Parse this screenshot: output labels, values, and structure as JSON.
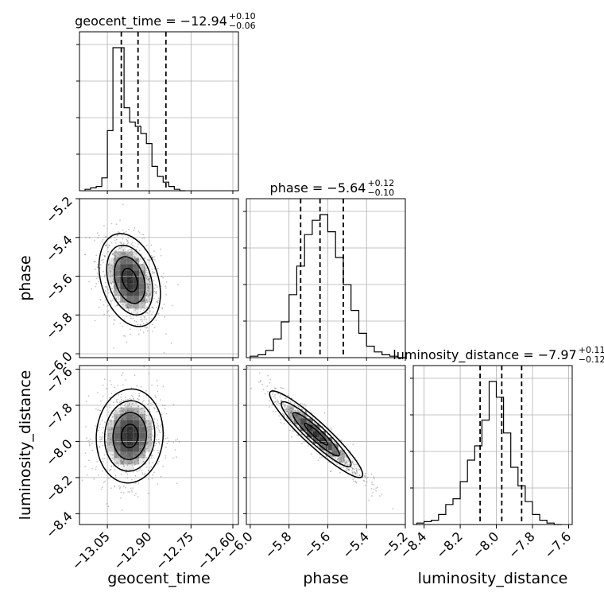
{
  "chart_data": {
    "type": "corner",
    "parameters": [
      "geocent_time",
      "phase",
      "luminosity_distance"
    ],
    "titles": [
      {
        "param": "geocent_time",
        "text": "geocent_time = −12.94",
        "upper": "+0.10",
        "lower": "−0.06"
      },
      {
        "param": "phase",
        "text": "phase = −5.64",
        "upper": "+0.12",
        "lower": "−0.10"
      },
      {
        "param": "luminosity_distance",
        "text": "luminosity_distance = −7.97",
        "upper": "+0.11",
        "lower": "−0.12"
      }
    ],
    "xlabels": [
      "geocent_time",
      "phase",
      "luminosity_distance"
    ],
    "ylabels": [
      "",
      "phase",
      "luminosity_distance"
    ],
    "axes": {
      "geocent_time": {
        "range": [
          -13.15,
          -12.58
        ],
        "ticks": [
          -13.05,
          -12.9,
          -12.75,
          -12.6
        ],
        "tick_labels": [
          "−13.05",
          "−12.90",
          "−12.75",
          "−12.60"
        ]
      },
      "phase": {
        "range": [
          -6.02,
          -5.2
        ],
        "ticks": [
          -6.0,
          -5.8,
          -5.6,
          -5.4,
          -5.2
        ],
        "tick_labels": [
          "−6.0",
          "−5.8",
          "−5.6",
          "−5.4",
          "−5.2"
        ]
      },
      "luminosity_distance": {
        "range": [
          -8.46,
          -7.58
        ],
        "ticks": [
          -8.4,
          -8.2,
          -8.0,
          -7.8,
          -7.6
        ],
        "tick_labels": [
          "−8.4",
          "−8.2",
          "−8.0",
          "−7.8",
          "−7.6"
        ]
      }
    },
    "quantiles": {
      "geocent_time": [
        -13.0,
        -12.94,
        -12.84
      ],
      "phase": [
        -5.74,
        -5.64,
        -5.52
      ],
      "luminosity_distance": [
        -8.09,
        -7.97,
        -7.86
      ]
    },
    "histograms": {
      "geocent_time": {
        "edges_start": -13.13,
        "bin_width": 0.02,
        "counts": [
          1,
          2,
          3,
          9,
          42,
          100,
          100,
          58,
          48,
          45,
          40,
          33,
          17,
          10,
          6,
          3,
          1,
          0
        ]
      },
      "phase": {
        "edges_start": -6.0,
        "bin_width": 0.04,
        "counts": [
          1,
          2,
          5,
          13,
          25,
          44,
          64,
          86,
          96,
          100,
          88,
          70,
          51,
          33,
          17,
          8,
          4,
          2,
          1,
          0
        ]
      },
      "luminosity_distance": {
        "edges_start": -8.44,
        "bin_width": 0.04,
        "counts": [
          1,
          2,
          3,
          7,
          14,
          18,
          30,
          45,
          55,
          73,
          100,
          89,
          64,
          40,
          27,
          16,
          7,
          3,
          1,
          0
        ]
      }
    },
    "pairs": [
      {
        "x": "geocent_time",
        "y": "phase",
        "center": [
          -12.97,
          -5.62
        ],
        "sd": [
          0.055,
          0.12
        ],
        "rho": -0.3
      },
      {
        "x": "geocent_time",
        "y": "luminosity_distance",
        "center": [
          -12.97,
          -7.97
        ],
        "sd": [
          0.06,
          0.13
        ],
        "rho": 0.05
      },
      {
        "x": "phase",
        "y": "luminosity_distance",
        "center": [
          -5.66,
          -7.96
        ],
        "sd": [
          0.12,
          0.12
        ],
        "rho": -0.93
      }
    ],
    "contour_levels": [
      0.5,
      1.0,
      1.5,
      2.0
    ],
    "grid": true,
    "colors": {
      "line": "#000000",
      "grid": "#b0b0b0",
      "scatter": "#555555"
    }
  }
}
